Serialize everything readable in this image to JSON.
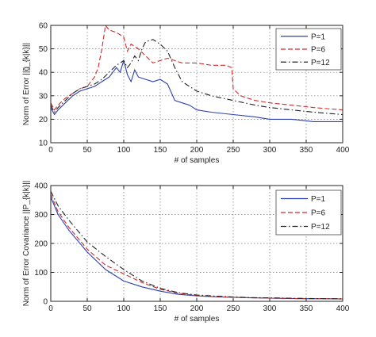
{
  "chart_data": [
    {
      "type": "line",
      "ylabel": "Norm of Error ||g̃_{k|k}||",
      "xlabel": "# of samples",
      "xlim": [
        0,
        400
      ],
      "ylim": [
        10,
        60
      ],
      "xticks": [
        0,
        50,
        100,
        150,
        200,
        250,
        300,
        350,
        400
      ],
      "yticks": [
        10,
        20,
        30,
        40,
        50,
        60
      ],
      "grid": true,
      "legend_position": "top-right",
      "series": [
        {
          "name": "P=1",
          "color": "#2b3fb0",
          "dash": "solid",
          "x": [
            0,
            5,
            10,
            20,
            30,
            40,
            50,
            60,
            70,
            80,
            90,
            95,
            100,
            105,
            110,
            115,
            120,
            130,
            140,
            150,
            160,
            170,
            180,
            190,
            200,
            220,
            250,
            280,
            300,
            330,
            360,
            400
          ],
          "y": [
            25,
            22,
            24,
            27,
            30,
            32,
            33,
            34,
            36,
            38,
            42,
            40,
            45,
            39,
            36,
            41,
            38,
            37,
            36,
            37,
            35,
            28,
            27,
            26,
            24,
            23,
            22,
            21,
            20,
            20,
            19,
            19
          ]
        },
        {
          "name": "P=6",
          "color": "#d02a2a",
          "dash": "dashed",
          "x": [
            0,
            5,
            10,
            20,
            30,
            40,
            50,
            55,
            60,
            65,
            70,
            75,
            80,
            90,
            100,
            105,
            110,
            120,
            130,
            140,
            150,
            160,
            170,
            180,
            200,
            220,
            240,
            248,
            250,
            260,
            280,
            300,
            330,
            360,
            400
          ],
          "y": [
            27,
            24,
            26,
            29,
            31,
            33,
            34,
            36,
            38,
            42,
            50,
            60,
            58,
            57,
            55,
            49,
            52,
            50,
            47,
            44,
            45,
            46,
            45,
            44,
            44,
            43,
            43,
            42,
            33,
            30,
            28,
            27,
            26,
            25,
            24
          ]
        },
        {
          "name": "P=12",
          "color": "#222222",
          "dash": "dashdot",
          "x": [
            0,
            5,
            10,
            20,
            30,
            40,
            50,
            60,
            70,
            80,
            90,
            100,
            105,
            110,
            115,
            120,
            125,
            130,
            140,
            150,
            160,
            170,
            180,
            190,
            200,
            220,
            250,
            280,
            300,
            330,
            360,
            400
          ],
          "y": [
            26,
            23,
            25,
            28,
            31,
            33,
            34,
            35,
            37,
            40,
            43,
            45,
            42,
            44,
            47,
            45,
            50,
            53,
            54,
            52,
            49,
            42,
            36,
            34,
            32,
            30,
            28,
            26,
            25,
            24,
            23,
            22
          ]
        }
      ]
    },
    {
      "type": "line",
      "ylabel": "Norm of Error Covariance ||P_{k|k}||",
      "xlabel": "# of samples",
      "xlim": [
        0,
        400
      ],
      "ylim": [
        0,
        400
      ],
      "xticks": [
        0,
        50,
        100,
        150,
        200,
        250,
        300,
        350,
        400
      ],
      "yticks": [
        0,
        100,
        200,
        300,
        400
      ],
      "grid": true,
      "legend_position": "top-right",
      "series": [
        {
          "name": "P=1",
          "color": "#2b3fb0",
          "dash": "solid",
          "x": [
            0,
            10,
            25,
            50,
            75,
            100,
            125,
            150,
            175,
            200,
            225,
            250,
            275,
            300,
            325,
            350,
            375,
            400
          ],
          "y": [
            360,
            300,
            245,
            170,
            110,
            70,
            50,
            35,
            24,
            19,
            16,
            14,
            12,
            11,
            10,
            9,
            9,
            8
          ]
        },
        {
          "name": "P=6",
          "color": "#d02a2a",
          "dash": "dashed",
          "x": [
            0,
            10,
            25,
            50,
            75,
            100,
            125,
            150,
            175,
            200,
            225,
            250,
            275,
            300,
            325,
            350,
            375,
            400
          ],
          "y": [
            370,
            310,
            255,
            180,
            125,
            95,
            65,
            42,
            28,
            20,
            16,
            14,
            12,
            11,
            10,
            9,
            9,
            8
          ]
        },
        {
          "name": "P=12",
          "color": "#222222",
          "dash": "dashdot",
          "x": [
            0,
            10,
            25,
            50,
            75,
            100,
            125,
            150,
            175,
            200,
            225,
            250,
            275,
            300,
            325,
            350,
            375,
            400
          ],
          "y": [
            380,
            330,
            280,
            205,
            155,
            110,
            70,
            45,
            30,
            22,
            18,
            15,
            13,
            12,
            11,
            10,
            9,
            9
          ]
        }
      ]
    }
  ]
}
